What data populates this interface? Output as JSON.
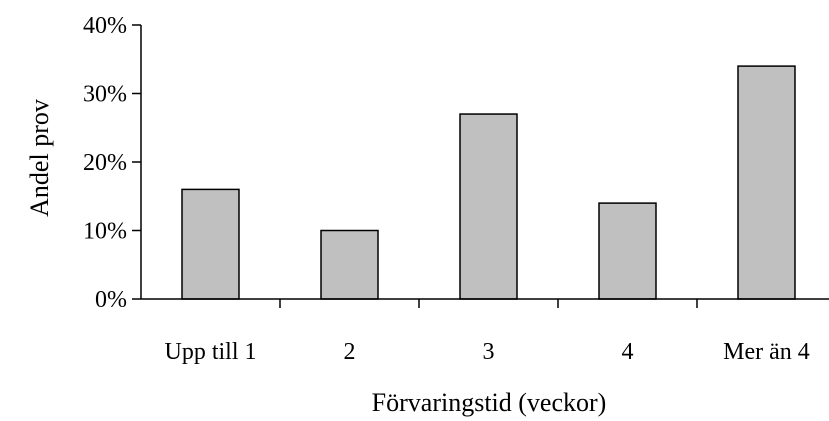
{
  "chart_data": {
    "type": "bar",
    "title": "",
    "xlabel": "Förvaringstid (veckor)",
    "ylabel": "Andel prov",
    "categories": [
      "Upp till 1",
      "2",
      "3",
      "4",
      "Mer än 4"
    ],
    "values": [
      16,
      10,
      27,
      14,
      34
    ],
    "value_unit": "%",
    "ylim": [
      0,
      40
    ],
    "yticks": [
      "0%",
      "10%",
      "20%",
      "30%",
      "40%"
    ],
    "grid": false,
    "legend": "none",
    "colors": {
      "bar_fill": "#c0c0c0",
      "bar_stroke": "#000000",
      "axis": "#000000"
    }
  }
}
